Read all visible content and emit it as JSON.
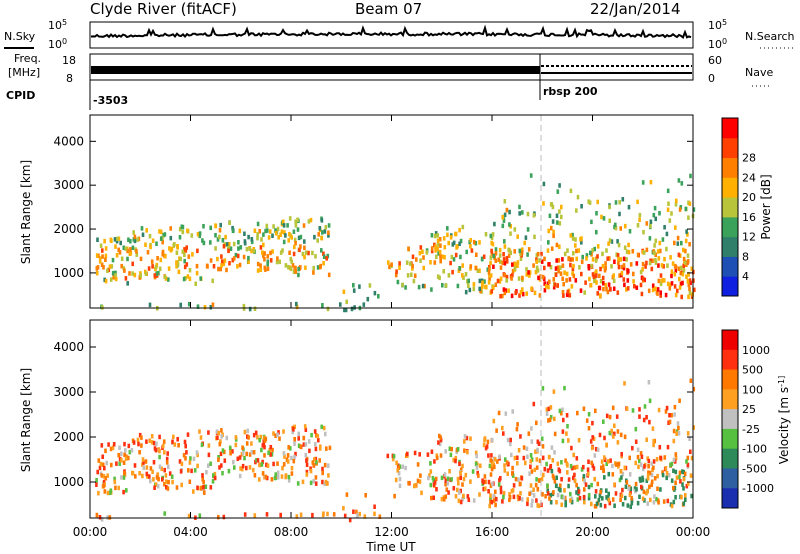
{
  "header": {
    "title": "Clyde River (fitACF)",
    "beam": "Beam 07",
    "date": "22/Jan/2014"
  },
  "strips": {
    "nsky_label": "N.Sky",
    "nsearch_label": "N.Search",
    "nsky_top": "10^5",
    "nsky_bottom": "10^0",
    "freq_label_1": "Freq.",
    "freq_label_2": "[MHz]",
    "freq_ticks": [
      "18",
      "8"
    ],
    "nave_label": "Nave",
    "nave_ticks": [
      "60",
      "0"
    ],
    "cpid_label": "CPID",
    "cpid_values": [
      "-3503",
      "rbsp 200"
    ]
  },
  "chart_data": [
    {
      "type": "heatmap",
      "name": "power-panel",
      "ylabel": "Slant Range [km]",
      "y_ticks": [
        "1000",
        "2000",
        "3000",
        "4000"
      ],
      "ylim": [
        200,
        4600
      ],
      "x_ticks": [
        "00:00",
        "04:00",
        "08:00",
        "12:00",
        "16:00",
        "20:00",
        "00:00"
      ],
      "xlim_hours": [
        0,
        24
      ],
      "colorbar": {
        "label": "Power [dB]",
        "ticks": [
          "4",
          "8",
          "12",
          "16",
          "20",
          "24",
          "28"
        ],
        "colors": [
          "#1020e0",
          "#1e4fb4",
          "#2f7f6a",
          "#3aa25a",
          "#b8c43a",
          "#ffb000",
          "#ff8000",
          "#ff4000",
          "#ff0000"
        ]
      }
    },
    {
      "type": "heatmap",
      "name": "velocity-panel",
      "ylabel": "Slant Range [km]",
      "y_ticks": [
        "1000",
        "2000",
        "3000",
        "4000"
      ],
      "ylim": [
        200,
        4600
      ],
      "x_ticks": [
        "00:00",
        "04:00",
        "08:00",
        "12:00",
        "16:00",
        "20:00",
        "00:00"
      ],
      "xlim_hours": [
        0,
        24
      ],
      "xlabel": "Time UT",
      "colorbar": {
        "label": "Velocity [m s^-1]",
        "ticks": [
          "1000",
          "500",
          "100",
          "25",
          "-25",
          "-100",
          "-500",
          "-1000"
        ],
        "colors": [
          "#1a2fb0",
          "#2e5fa0",
          "#2f8a5a",
          "#58c040",
          "#c0c0c0",
          "#ffa020",
          "#ff7800",
          "#ff3010",
          "#ee0000"
        ]
      }
    }
  ]
}
